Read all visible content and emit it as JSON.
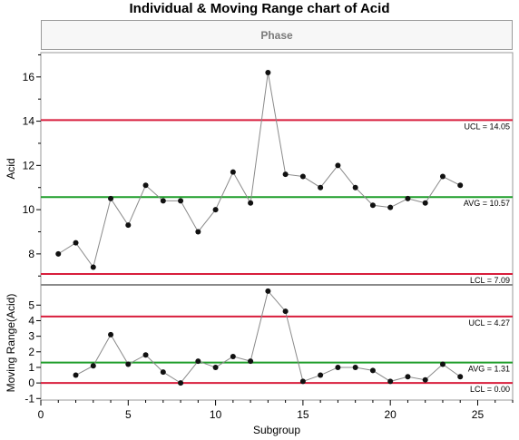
{
  "title": "Individual & Moving Range chart of Acid",
  "phase_label": "Phase",
  "colors": {
    "limit": "#d81e3c",
    "center": "#1f9d2a",
    "series": "#8a8a8a",
    "marker": "#111111"
  },
  "chart_data": [
    {
      "type": "line",
      "name": "individual",
      "ylabel": "Acid",
      "xlim": [
        0,
        27
      ],
      "ylim": [
        6.6,
        17.1
      ],
      "y_ticks": [
        8,
        10,
        12,
        14,
        16
      ],
      "x": [
        1,
        2,
        3,
        4,
        5,
        6,
        7,
        8,
        9,
        10,
        11,
        12,
        13,
        14,
        15,
        16,
        17,
        18,
        19,
        20,
        21,
        22,
        23,
        24
      ],
      "values": [
        8.0,
        8.5,
        7.4,
        10.5,
        9.3,
        11.1,
        10.4,
        10.4,
        9.0,
        10.0,
        11.7,
        10.3,
        16.2,
        11.6,
        11.5,
        11.0,
        12.0,
        11.0,
        10.2,
        10.1,
        10.5,
        10.3,
        11.5,
        11.1
      ],
      "lines": [
        {
          "label": "UCL = 14.05",
          "value": 14.05,
          "kind": "limit"
        },
        {
          "label": "AVG = 10.57",
          "value": 10.57,
          "kind": "center"
        },
        {
          "label": "LCL = 7.09",
          "value": 7.09,
          "kind": "limit"
        }
      ]
    },
    {
      "type": "line",
      "name": "moving-range",
      "ylabel": "Moving Range(Acid)",
      "xlabel": "Subgroup",
      "xlim": [
        0,
        27
      ],
      "ylim": [
        -1.1,
        6.3
      ],
      "y_ticks": [
        -1,
        0,
        1,
        2,
        3,
        4,
        5
      ],
      "x_ticks": [
        0,
        5,
        10,
        15,
        20,
        25
      ],
      "x": [
        2,
        3,
        4,
        5,
        6,
        7,
        8,
        9,
        10,
        11,
        12,
        13,
        14,
        15,
        16,
        17,
        18,
        19,
        20,
        21,
        22,
        23,
        24
      ],
      "values": [
        0.5,
        1.1,
        3.1,
        1.2,
        1.8,
        0.7,
        0.0,
        1.4,
        1.0,
        1.7,
        1.4,
        5.9,
        4.6,
        0.1,
        0.5,
        1.0,
        1.0,
        0.8,
        0.1,
        0.4,
        0.2,
        1.2,
        0.4
      ],
      "lines": [
        {
          "label": "UCL = 4.27",
          "value": 4.27,
          "kind": "limit"
        },
        {
          "label": "AVG = 1.31",
          "value": 1.31,
          "kind": "center"
        },
        {
          "label": "LCL = 0.00",
          "value": 0.0,
          "kind": "limit"
        }
      ]
    }
  ]
}
